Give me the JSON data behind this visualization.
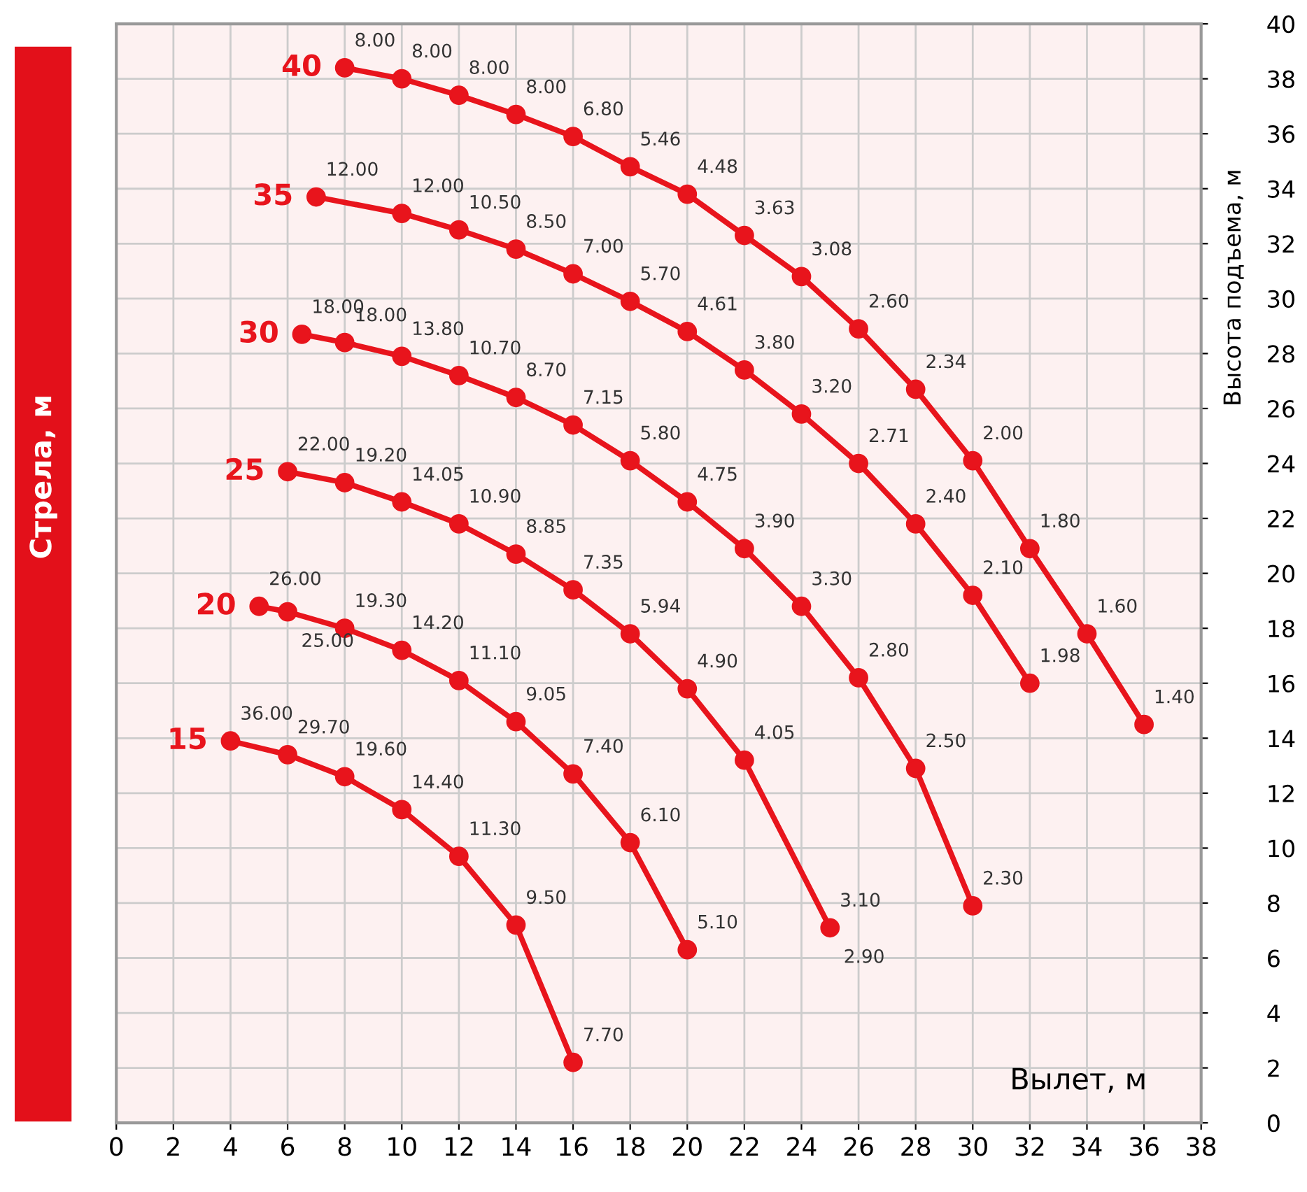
{
  "chart_data": {
    "type": "line",
    "xlabel": "Вылет, м",
    "ylabel": "Высота подъема, м",
    "legend_title": "Стрела, м",
    "xlim": [
      0,
      38
    ],
    "xticks": [
      0,
      2,
      4,
      6,
      8,
      10,
      12,
      14,
      16,
      18,
      20,
      22,
      24,
      26,
      28,
      30,
      32,
      34,
      36,
      38
    ],
    "ylim": [
      0,
      40
    ],
    "yticks": [
      0,
      2,
      4,
      6,
      8,
      10,
      12,
      14,
      16,
      18,
      20,
      22,
      24,
      26,
      28,
      30,
      32,
      34,
      36,
      38,
      40
    ],
    "grid": true,
    "marker": "circle",
    "line_style": "solid",
    "legend": "left",
    "series": [
      {
        "name": "40",
        "color": "#e8141c",
        "x": [
          8,
          10,
          12,
          14,
          16,
          18,
          20,
          22,
          24,
          26,
          28,
          30,
          32,
          34,
          36
        ],
        "values": [
          38.4,
          38.0,
          37.4,
          36.7,
          35.9,
          34.8,
          33.8,
          32.3,
          30.8,
          28.9,
          26.7,
          24.1,
          20.9,
          17.8,
          14.5
        ]
      },
      {
        "name": "35",
        "color": "#e8141c",
        "x": [
          7,
          10,
          12,
          14,
          16,
          18,
          20,
          22,
          24,
          26,
          28,
          30,
          32
        ],
        "values": [
          33.7,
          33.1,
          32.5,
          31.8,
          30.9,
          29.9,
          28.8,
          27.4,
          25.8,
          24.0,
          21.8,
          19.2,
          16.0
        ]
      },
      {
        "name": "30",
        "color": "#e8141c",
        "x": [
          6.5,
          8,
          10,
          12,
          14,
          16,
          18,
          20,
          22,
          24,
          26,
          28,
          30
        ],
        "values": [
          28.7,
          28.4,
          27.9,
          27.2,
          26.4,
          25.4,
          24.1,
          22.6,
          20.9,
          18.8,
          16.2,
          12.9,
          7.9
        ]
      },
      {
        "name": "25",
        "color": "#e8141c",
        "x": [
          6,
          8,
          10,
          12,
          14,
          16,
          18,
          20,
          22,
          25
        ],
        "values": [
          23.7,
          23.3,
          22.6,
          21.8,
          20.7,
          19.4,
          17.8,
          15.8,
          13.2,
          7.1
        ]
      },
      {
        "name": "20",
        "color": "#e8141c",
        "x": [
          5,
          6,
          8,
          10,
          12,
          14,
          16,
          18,
          20
        ],
        "values": [
          18.8,
          18.6,
          18.0,
          17.2,
          16.1,
          14.6,
          12.7,
          10.2,
          6.3
        ]
      },
      {
        "name": "15",
        "color": "#e8141c",
        "x": [
          4,
          6,
          8,
          10,
          12,
          14,
          16
        ],
        "values": [
          13.9,
          13.4,
          12.6,
          11.4,
          9.7,
          7.2,
          2.2
        ]
      }
    ],
    "annotations": [
      {
        "text": "8.00",
        "x": 8,
        "y": 38.4
      },
      {
        "text": "8.00",
        "x": 10,
        "y": 38.0
      },
      {
        "text": "8.00",
        "x": 12,
        "y": 37.4
      },
      {
        "text": "8.00",
        "x": 14,
        "y": 36.7
      },
      {
        "text": "6.80",
        "x": 16,
        "y": 35.9
      },
      {
        "text": "5.46",
        "x": 18,
        "y": 34.8
      },
      {
        "text": "4.48",
        "x": 20,
        "y": 33.8
      },
      {
        "text": "3.63",
        "x": 22,
        "y": 32.3
      },
      {
        "text": "3.08",
        "x": 24,
        "y": 30.8
      },
      {
        "text": "2.60",
        "x": 26,
        "y": 28.9
      },
      {
        "text": "2.34",
        "x": 28,
        "y": 26.7
      },
      {
        "text": "2.00",
        "x": 30,
        "y": 24.1
      },
      {
        "text": "1.80",
        "x": 32,
        "y": 20.9
      },
      {
        "text": "1.60",
        "x": 34,
        "y": 17.8
      },
      {
        "text": "1.40",
        "x": 36,
        "y": 14.5
      },
      {
        "text": "12.00",
        "x": 7,
        "y": 33.7
      },
      {
        "text": "12.00",
        "x": 10,
        "y": 33.1
      },
      {
        "text": "10.50",
        "x": 12,
        "y": 32.5
      },
      {
        "text": "8.50",
        "x": 14,
        "y": 31.8
      },
      {
        "text": "7.00",
        "x": 16,
        "y": 30.9
      },
      {
        "text": "5.70",
        "x": 18,
        "y": 29.9
      },
      {
        "text": "4.61",
        "x": 20,
        "y": 28.8
      },
      {
        "text": "3.80",
        "x": 22,
        "y": 27.4
      },
      {
        "text": "3.20",
        "x": 24,
        "y": 25.8
      },
      {
        "text": "2.71",
        "x": 26,
        "y": 24.0
      },
      {
        "text": "2.40",
        "x": 28,
        "y": 21.8
      },
      {
        "text": "2.10",
        "x": 30,
        "y": 19.2
      },
      {
        "text": "1.98",
        "x": 32,
        "y": 16.0
      },
      {
        "text": "18.00",
        "x": 6.5,
        "y": 28.7
      },
      {
        "text": "18.00",
        "x": 8,
        "y": 28.4
      },
      {
        "text": "13.80",
        "x": 10,
        "y": 27.9
      },
      {
        "text": "10.70",
        "x": 12,
        "y": 27.2
      },
      {
        "text": "8.70",
        "x": 14,
        "y": 26.4
      },
      {
        "text": "7.15",
        "x": 16,
        "y": 25.4
      },
      {
        "text": "5.80",
        "x": 18,
        "y": 24.1
      },
      {
        "text": "4.75",
        "x": 20,
        "y": 22.6
      },
      {
        "text": "3.90",
        "x": 22,
        "y": 20.9
      },
      {
        "text": "3.30",
        "x": 24,
        "y": 18.8
      },
      {
        "text": "2.80",
        "x": 26,
        "y": 16.2
      },
      {
        "text": "2.50",
        "x": 28,
        "y": 12.9
      },
      {
        "text": "2.30",
        "x": 30,
        "y": 7.9
      },
      {
        "text": "22.00",
        "x": 6,
        "y": 23.7
      },
      {
        "text": "19.20",
        "x": 8,
        "y": 23.3
      },
      {
        "text": "14.05",
        "x": 10,
        "y": 22.6
      },
      {
        "text": "10.90",
        "x": 12,
        "y": 21.8
      },
      {
        "text": "8.85",
        "x": 14,
        "y": 20.7
      },
      {
        "text": "7.35",
        "x": 16,
        "y": 19.4
      },
      {
        "text": "5.94",
        "x": 18,
        "y": 17.8
      },
      {
        "text": "4.90",
        "x": 20,
        "y": 15.8
      },
      {
        "text": "4.05",
        "x": 22,
        "y": 13.2
      },
      {
        "text": "3.10",
        "x": 25,
        "y": 7.1
      },
      {
        "text": "2.90",
        "x": 25,
        "y": 7.1
      },
      {
        "text": "26.00",
        "x": 5,
        "y": 18.8
      },
      {
        "text": "25.00",
        "x": 6,
        "y": 18.6
      },
      {
        "text": "19.30",
        "x": 8,
        "y": 18.0
      },
      {
        "text": "14.20",
        "x": 10,
        "y": 17.2
      },
      {
        "text": "11.10",
        "x": 12,
        "y": 16.1
      },
      {
        "text": "9.05",
        "x": 14,
        "y": 14.6
      },
      {
        "text": "7.40",
        "x": 16,
        "y": 12.7
      },
      {
        "text": "6.10",
        "x": 18,
        "y": 10.2
      },
      {
        "text": "5.10",
        "x": 20,
        "y": 6.3
      },
      {
        "text": "36.00",
        "x": 4,
        "y": 13.9
      },
      {
        "text": "29.70",
        "x": 6,
        "y": 13.4
      },
      {
        "text": "19.60",
        "x": 8,
        "y": 12.6
      },
      {
        "text": "14.40",
        "x": 10,
        "y": 11.4
      },
      {
        "text": "11.30",
        "x": 12,
        "y": 9.7
      },
      {
        "text": "9.50",
        "x": 14,
        "y": 7.2
      },
      {
        "text": "7.70",
        "x": 16,
        "y": 2.2
      }
    ]
  }
}
